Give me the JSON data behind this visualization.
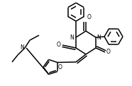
{
  "bg_color": "#ffffff",
  "line_color": "#000000",
  "lw": 1.1,
  "figsize": [
    1.86,
    1.22
  ],
  "dpi": 100,
  "xlim": [
    0,
    186
  ],
  "ylim": [
    0,
    122
  ]
}
